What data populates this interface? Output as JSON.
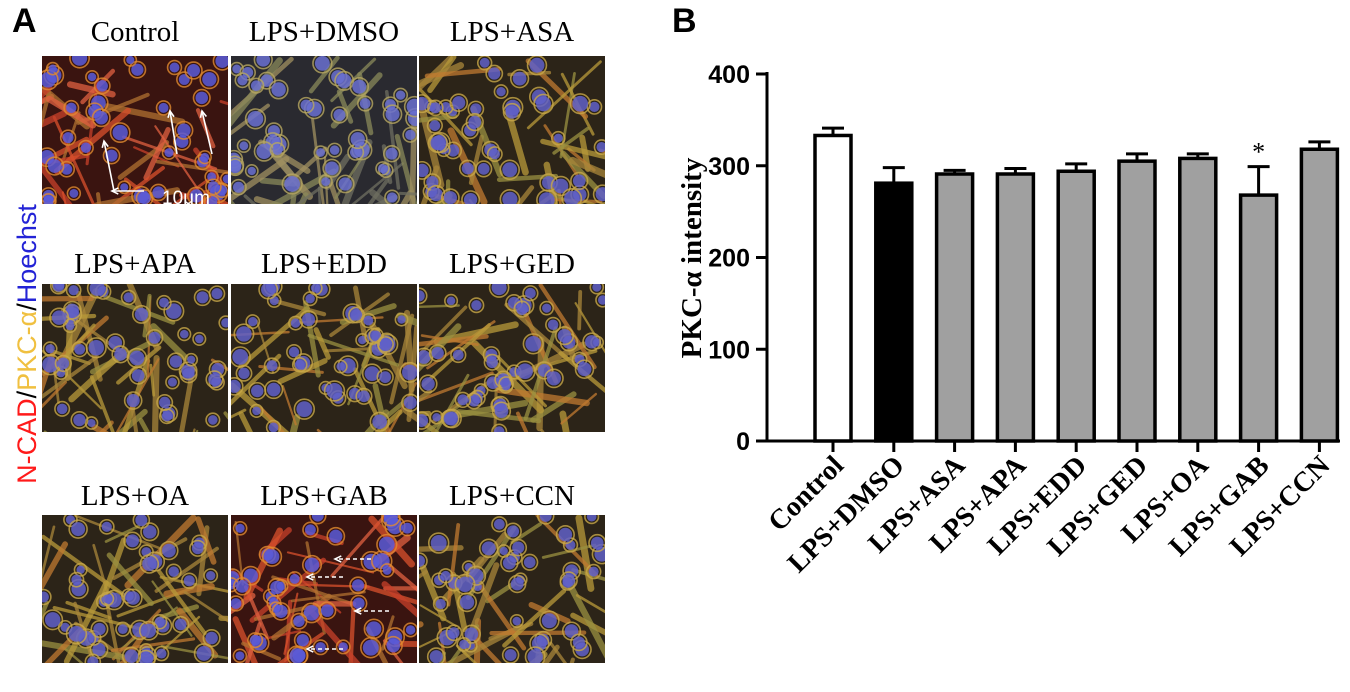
{
  "panel_a": {
    "letter": "A",
    "stain_label": {
      "ncad": "N-CAD",
      "sep1": "/",
      "pkc": "PKC-α",
      "sep2": "/",
      "hoechst": "Hoechst"
    },
    "stain_colors": {
      "ncad": "#ff1a1a",
      "pkc": "#f0c040",
      "hoechst": "#2323d6"
    },
    "scale_bar": "10μm",
    "images": [
      {
        "title": "Control",
        "tint": "red"
      },
      {
        "title": "LPS+DMSO",
        "tint": "blue"
      },
      {
        "title": "LPS+ASA",
        "tint": "yellow"
      },
      {
        "title": "LPS+APA",
        "tint": "yellow"
      },
      {
        "title": "LPS+EDD",
        "tint": "yellow"
      },
      {
        "title": "LPS+GED",
        "tint": "yellow"
      },
      {
        "title": "LPS+OA",
        "tint": "yellow"
      },
      {
        "title": "LPS+GAB",
        "tint": "red"
      },
      {
        "title": "LPS+CCN",
        "tint": "yellow"
      }
    ]
  },
  "chart_data": {
    "panel_letter": "B",
    "type": "bar",
    "categories": [
      "Control",
      "LPS+DMSO",
      "LPS+ASA",
      "LPS+APA",
      "LPS+EDD",
      "LPS+GED",
      "LPS+OA",
      "LPS+GAB",
      "LPS+CCN"
    ],
    "values": [
      333,
      281,
      291,
      291,
      294,
      305,
      308,
      268,
      318
    ],
    "errors": [
      8,
      17,
      4,
      6,
      8,
      8,
      5,
      31,
      8
    ],
    "fills": [
      "#ffffff",
      "#000000",
      "#a0a0a0",
      "#a0a0a0",
      "#a0a0a0",
      "#a0a0a0",
      "#a0a0a0",
      "#a0a0a0",
      "#a0a0a0"
    ],
    "annotations": [
      {
        "category": "LPS+GAB",
        "text": "*"
      }
    ],
    "ylabel": "PKC-α intensity",
    "xlabel": "",
    "ylim": [
      0,
      400
    ],
    "yticks": [
      0,
      100,
      200,
      300,
      400
    ],
    "grid": false
  }
}
